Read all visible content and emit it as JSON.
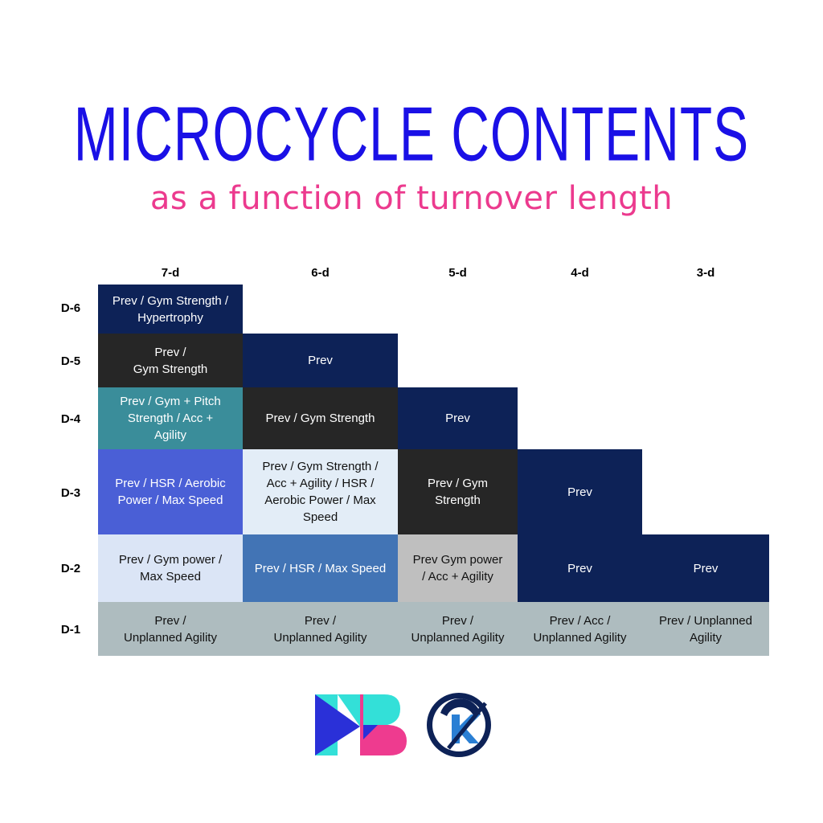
{
  "title": "MICROCYCLE CONTENTS",
  "subtitle": "as a function of turnover length",
  "columns": [
    "7-d",
    "6-d",
    "5-d",
    "4-d",
    "3-d"
  ],
  "rows": [
    "D-6",
    "D-5",
    "D-4",
    "D-3",
    "D-2",
    "D-1"
  ],
  "cells": {
    "c7_d6": "Prev / Gym Strength /\nHypertrophy",
    "c7_d5": "Prev /\nGym Strength",
    "c7_d4": "Prev / Gym + Pitch\nStrength / Acc +\nAgility",
    "c7_d3": "Prev / HSR / Aerobic\nPower / Max Speed",
    "c7_d2": "Prev / Gym power /\nMax Speed",
    "c7_d1": "Prev /\nUnplanned Agility",
    "c6_d5": "Prev",
    "c6_d4": "Prev / Gym Strength",
    "c6_d3": "Prev / Gym Strength /\nAcc + Agility / HSR /\nAerobic Power / Max\nSpeed",
    "c6_d2": "Prev / HSR / Max Speed",
    "c6_d1": "Prev /\nUnplanned Agility",
    "c5_d4": "Prev",
    "c5_d3": "Prev / Gym\nStrength",
    "c5_d2": "Prev Gym power\n/ Acc + Agility",
    "c5_d1": "Prev /\nUnplanned Agility",
    "c4_d3": "Prev",
    "c4_d2": "Prev",
    "c4_d1": "Prev / Acc /\nUnplanned Agility",
    "c3_d2": "Prev",
    "c3_d1": "Prev / Unplanned\nAgility"
  },
  "colors": {
    "title": "#1a10e6",
    "subtitle": "#ec3a8e",
    "navy": "#0d2257",
    "charcoal": "#262626",
    "teal": "#3a8d9a",
    "periwinkle": "#4a5fd6",
    "pale_blue": "#dbe5f6",
    "very_pale_blue": "#e3edf7",
    "steel_blue": "#4274b5",
    "light_gray": "#bfbfbf",
    "gray_blue": "#aebcbf",
    "logo_cyan": "#33e0d8",
    "logo_pink": "#ee3b8f",
    "logo_blue": "#2a7fd4"
  },
  "logos": [
    "mb-logo",
    "k-logo"
  ]
}
